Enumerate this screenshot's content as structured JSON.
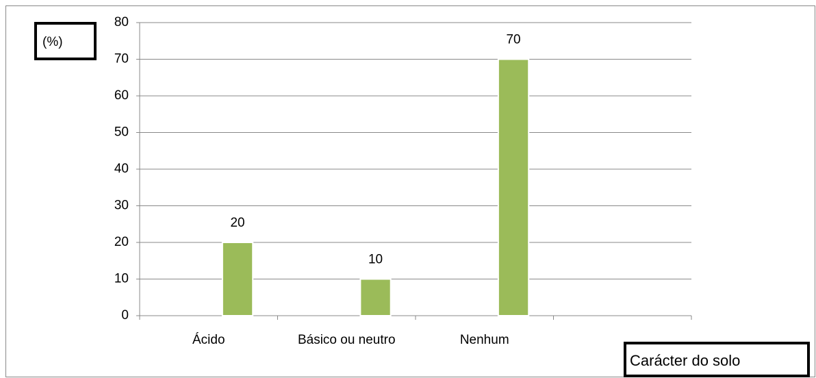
{
  "chart_data": {
    "type": "bar",
    "y_label": "(%)",
    "x_label": "Carácter do solo",
    "categories": [
      "Ácido",
      "Básico ou neutro",
      "Nenhum",
      null
    ],
    "values": [
      20,
      10,
      70,
      null
    ],
    "color": "#9bbb59",
    "ylim": [
      0,
      80
    ],
    "yticks": [
      0,
      10,
      20,
      30,
      40,
      50,
      60,
      70,
      80
    ],
    "grid": true
  }
}
